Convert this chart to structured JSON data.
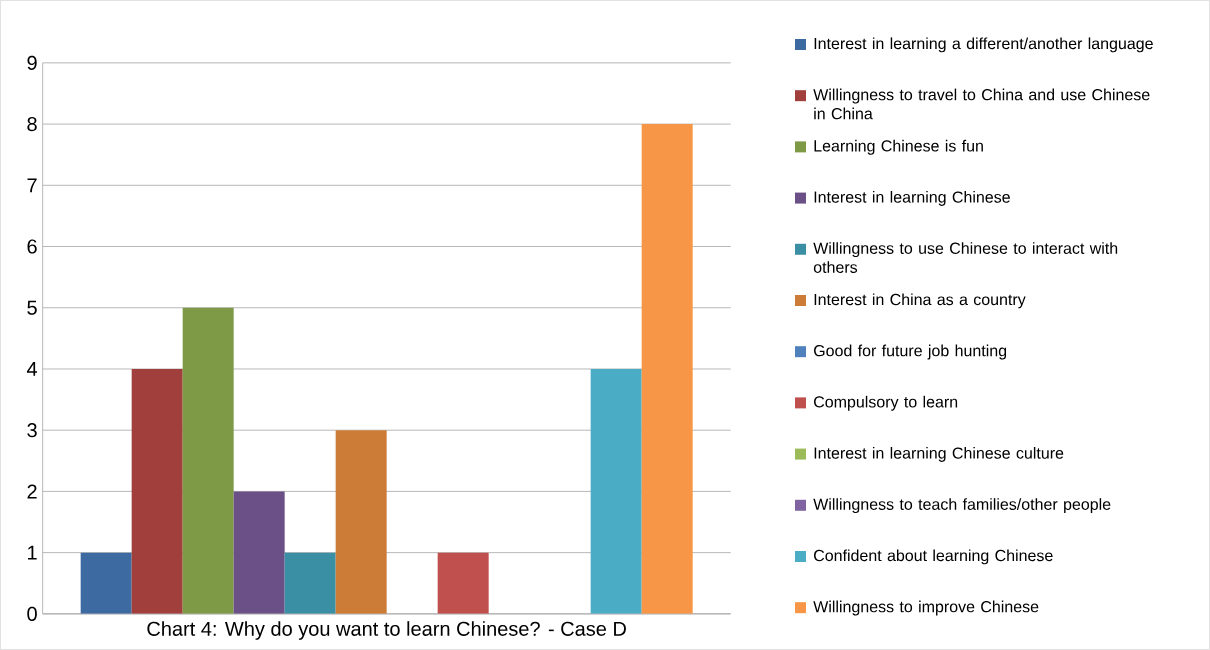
{
  "chart_data": {
    "type": "bar",
    "title": "Chart 4: Why do you want to learn Chinese? - Case D",
    "categories": [
      null
    ],
    "series": [
      {
        "name": "Interest in learning a different/another language",
        "color": "#3d6aa0",
        "values": [
          1
        ]
      },
      {
        "name": "Willingness to travel to China and use Chinese in China",
        "color": "#a03f3c",
        "values": [
          4
        ]
      },
      {
        "name": "Learning Chinese is fun",
        "color": "#7e9a47",
        "values": [
          5
        ]
      },
      {
        "name": "Interest in learning Chinese",
        "color": "#6a5087",
        "values": [
          2
        ]
      },
      {
        "name": "Willingness to use Chinese to interact with others",
        "color": "#3b8fa5",
        "values": [
          1
        ]
      },
      {
        "name": "Interest in China as a country",
        "color": "#cd7c38",
        "values": [
          3
        ]
      },
      {
        "name": "Good for future job hunting",
        "color": "#4f81bd",
        "values": [
          0
        ]
      },
      {
        "name": "Compulsory to learn",
        "color": "#c0504d",
        "values": [
          1
        ]
      },
      {
        "name": "Interest in learning Chinese culture",
        "color": "#9bbb59",
        "values": [
          0
        ]
      },
      {
        "name": "Willingness to teach families/other people",
        "color": "#8064a2",
        "values": [
          0
        ]
      },
      {
        "name": "Confident about learning Chinese",
        "color": "#4bacc6",
        "values": [
          4
        ]
      },
      {
        "name": "Willingness to improve Chinese",
        "color": "#f79646",
        "values": [
          8
        ]
      }
    ],
    "ylim": [
      0,
      9
    ],
    "yticks": [
      0,
      1,
      2,
      3,
      4,
      5,
      6,
      7,
      8,
      9
    ],
    "grid": "y",
    "legend": "right"
  }
}
